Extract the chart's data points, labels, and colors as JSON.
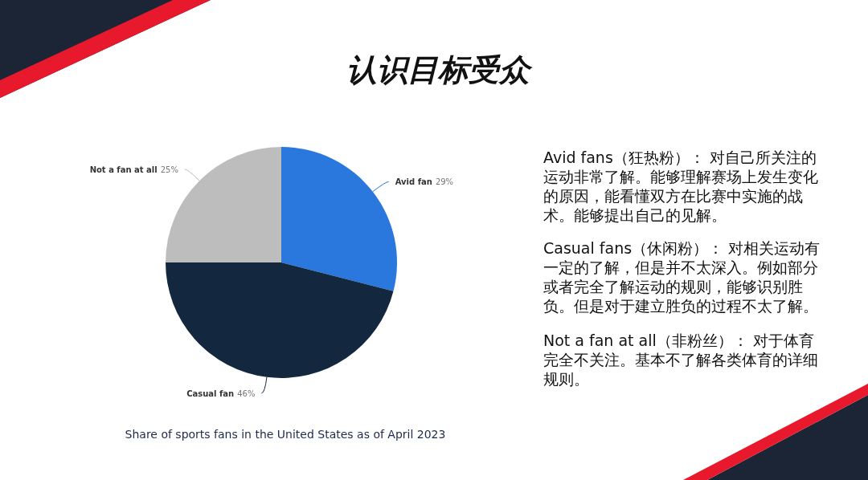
{
  "chart_data": {
    "type": "pie",
    "title": "认识目标受众",
    "categories": [
      "Avid fan",
      "Casual fan",
      "Not a fan at all"
    ],
    "values": [
      29,
      46,
      25
    ],
    "colors": [
      "#2a77dd",
      "#13273f",
      "#bdbdbd"
    ],
    "value_labels": [
      "29%",
      "46%",
      "25%"
    ],
    "annotations": [
      "Avid fans（狂热粉）： 对自己所关注的运动非常了解。能够理解赛场上发生变化的原因，能看懂双方在比赛中实施的战术。能够提出自己的见解。",
      "Casual fans（休闲粉）： 对相关运动有一定的了解，但是并不太深入。例如部分或者完全了解运动的规则，能够识别胜负。但是对于建立胜负的过程不太了解。",
      "Not a fan at all（非粉丝）： 对于体育完全不关注。基本不了解各类体育的详细规则。",
      "Share of sports fans in the United States as of April 2023"
    ]
  }
}
